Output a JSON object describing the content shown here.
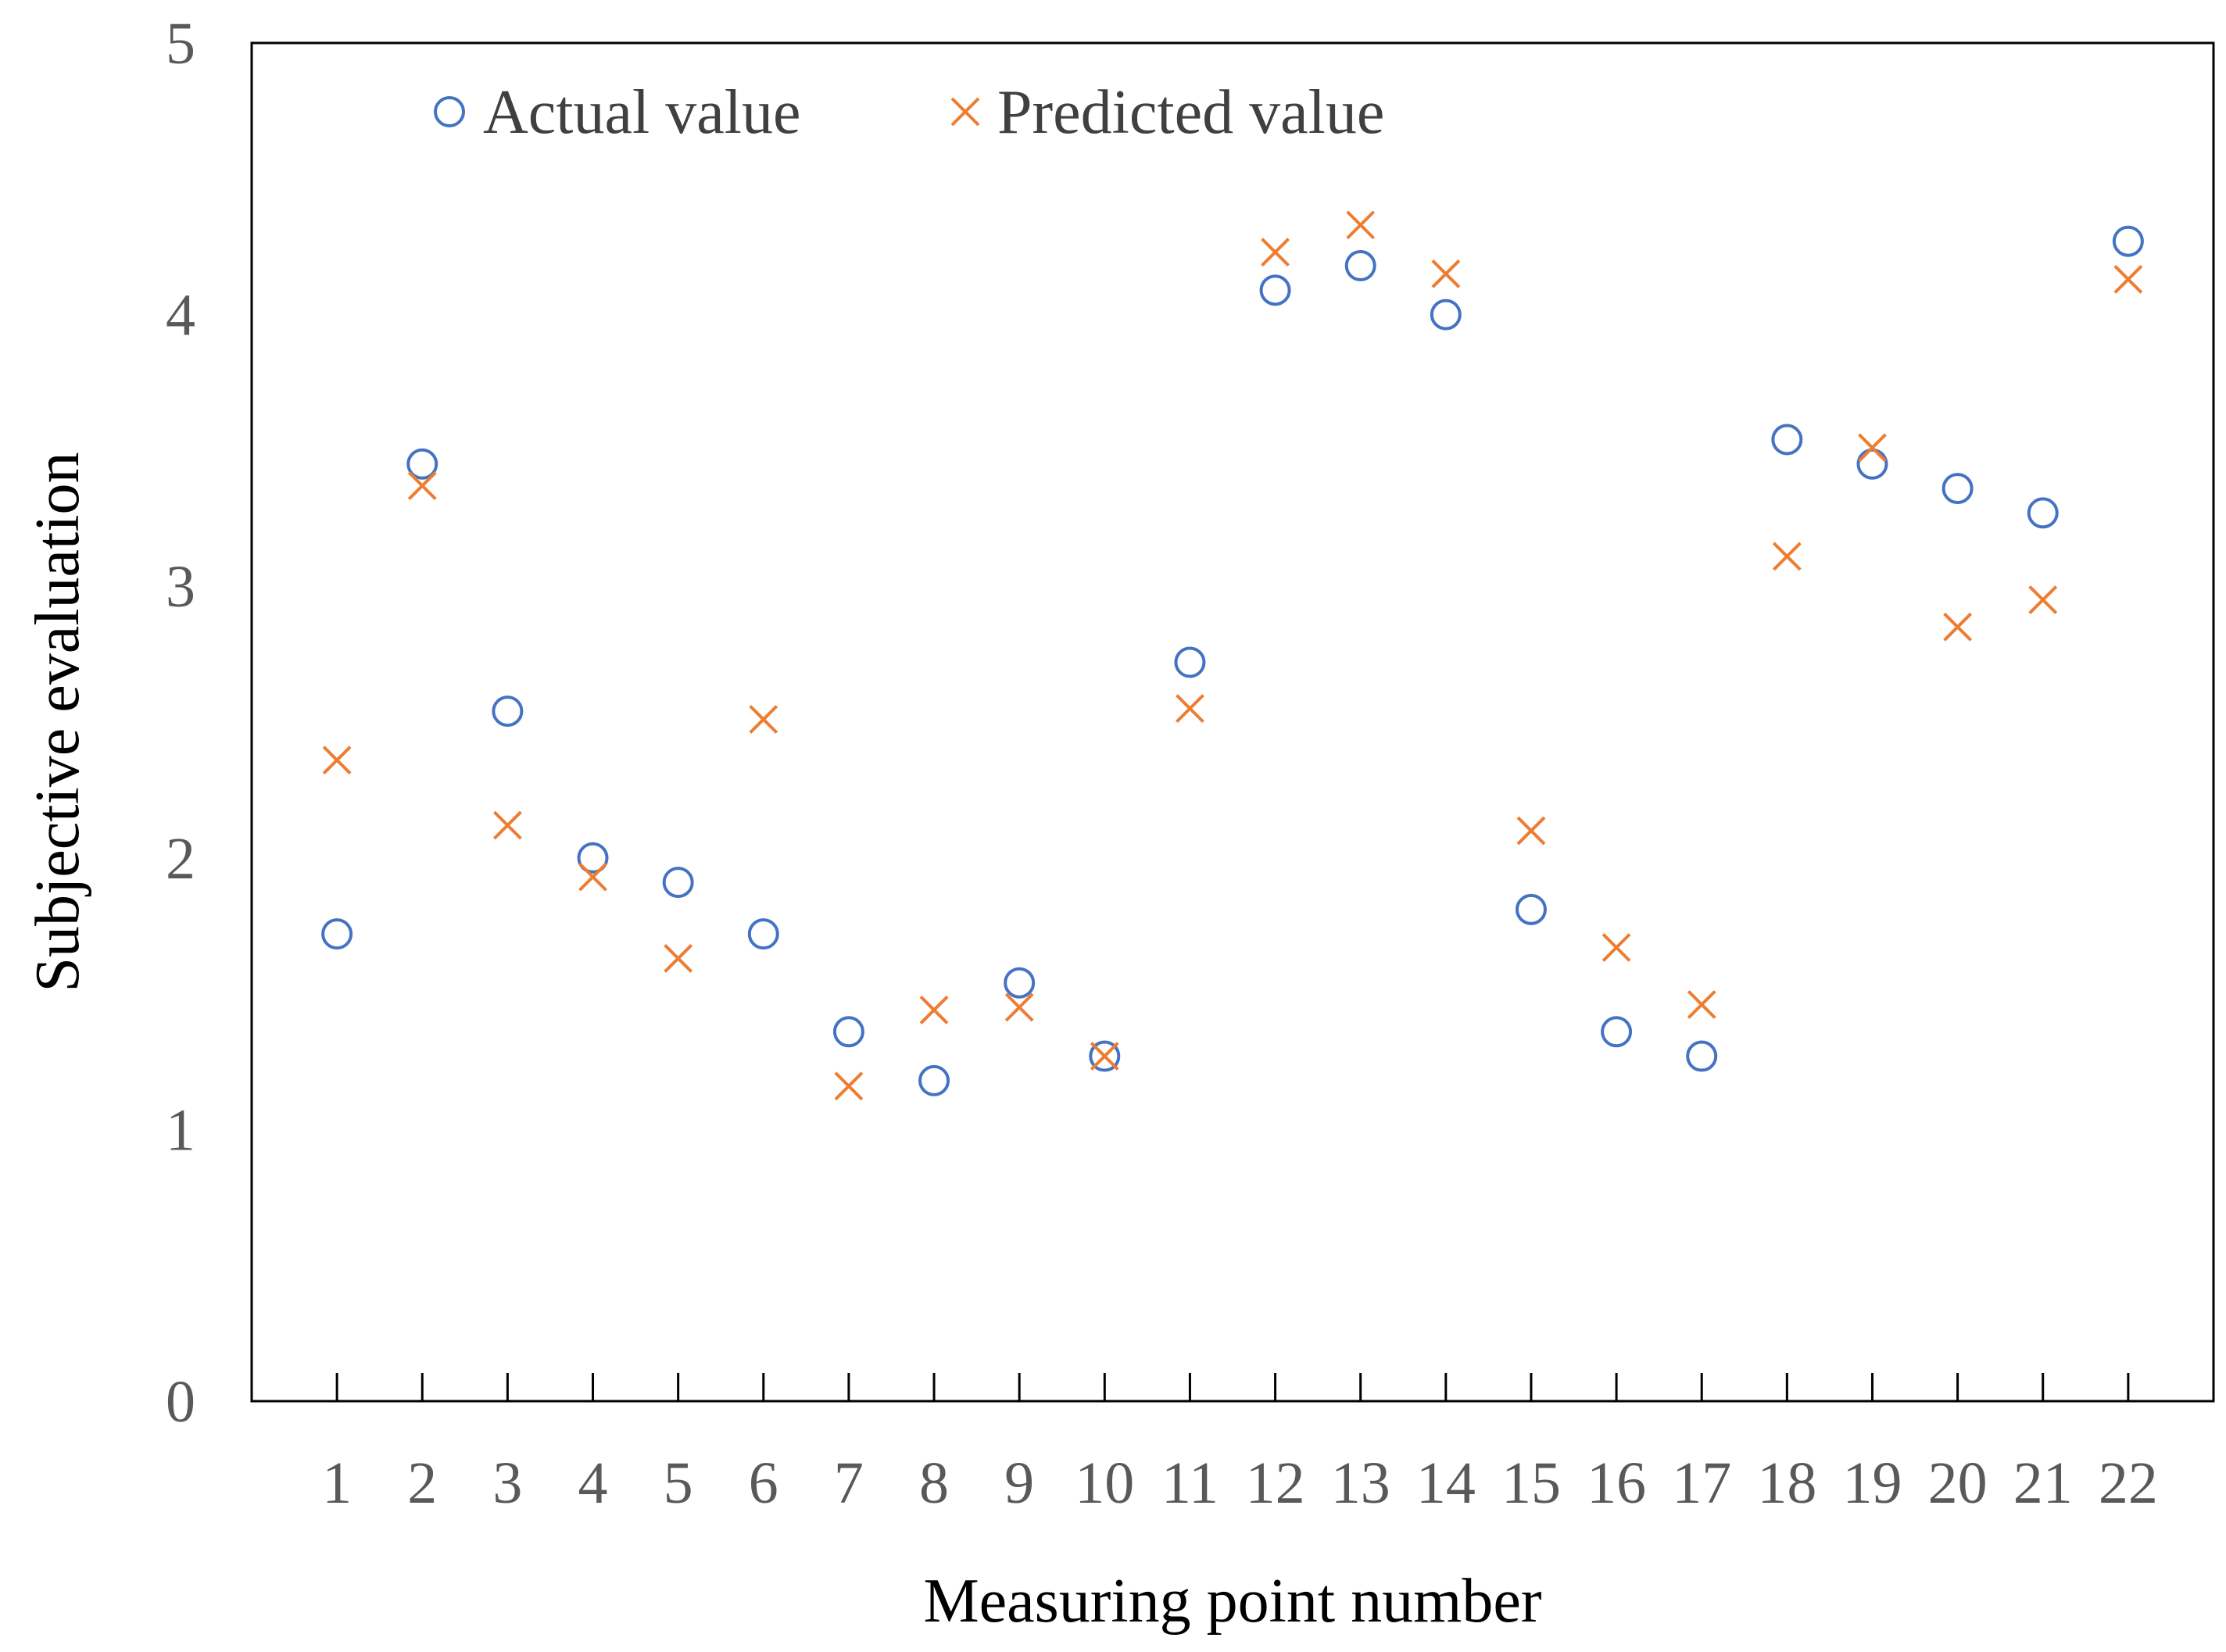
{
  "chart_data": {
    "type": "scatter",
    "title": "",
    "xlabel": "Measuring point number",
    "ylabel": "Subjective evaluation",
    "x": [
      1,
      2,
      3,
      4,
      5,
      6,
      7,
      8,
      9,
      10,
      11,
      12,
      13,
      14,
      15,
      16,
      17,
      18,
      19,
      20,
      21,
      22
    ],
    "x_tick_labels": [
      "1",
      "2",
      "3",
      "4",
      "5",
      "6",
      "7",
      "8",
      "9",
      "10",
      "11",
      "12",
      "13",
      "14",
      "15",
      "16",
      "17",
      "18",
      "19",
      "20",
      "21",
      "22"
    ],
    "y_tick_labels": [
      "0",
      "1",
      "2",
      "3",
      "4",
      "5"
    ],
    "y_ticks": [
      0,
      1,
      2,
      3,
      4,
      5
    ],
    "xlim": [
      0,
      23
    ],
    "ylim": [
      0,
      5
    ],
    "grid": false,
    "legend_position": "top-left",
    "series": [
      {
        "name": "Actual value",
        "marker": "circle",
        "color": "#4472C4",
        "values": [
          1.72,
          3.45,
          2.54,
          2.0,
          1.91,
          1.72,
          1.36,
          1.18,
          1.54,
          1.27,
          2.72,
          4.09,
          4.18,
          4.0,
          1.81,
          1.36,
          1.27,
          3.54,
          3.45,
          3.36,
          3.27,
          4.27
        ]
      },
      {
        "name": "Predicted value",
        "marker": "x",
        "color": "#ED7D31",
        "values": [
          2.36,
          3.37,
          2.12,
          1.93,
          1.63,
          2.51,
          1.16,
          1.44,
          1.45,
          1.27,
          2.55,
          4.23,
          4.33,
          4.15,
          2.1,
          1.67,
          1.46,
          3.11,
          3.51,
          2.85,
          2.95,
          4.13
        ]
      }
    ]
  }
}
